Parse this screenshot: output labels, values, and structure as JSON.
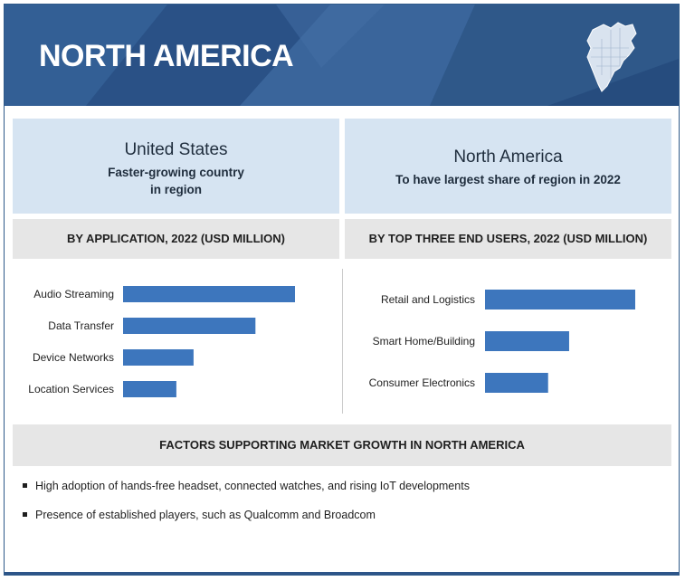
{
  "header": {
    "title": "NORTH AMERICA",
    "map_icon": "north-america-map-icon",
    "bg_color": "#2d5589"
  },
  "callouts": {
    "us": {
      "title": "United States",
      "line1": "Faster-growing country",
      "line2": "in region"
    },
    "na": {
      "title": "North America",
      "line1": "To have largest share of region in 2022"
    }
  },
  "bands": {
    "application": "BY APPLICATION, 2022 (USD MILLION)",
    "end_users": "BY TOP THREE END USERS, 2022 (USD MILLION)",
    "factors": "FACTORS SUPPORTING MARKET GROWTH IN NORTH AMERICA"
  },
  "chart_data": [
    {
      "type": "bar",
      "orientation": "horizontal",
      "title": "BY APPLICATION, 2022 (USD MILLION)",
      "categories": [
        "Audio Streaming",
        "Data Transfer",
        "Device Networks",
        "Location Services"
      ],
      "values": [
        100,
        77,
        41,
        31
      ],
      "xlim": [
        0,
        100
      ],
      "color": "#3d76bd",
      "grid": false
    },
    {
      "type": "bar",
      "orientation": "horizontal",
      "title": "BY TOP THREE END USERS, 2022 (USD MILLION)",
      "categories": [
        "Retail and Logistics",
        "Smart Home/Building",
        "Consumer Electronics"
      ],
      "values": [
        100,
        56,
        42
      ],
      "xlim": [
        0,
        100
      ],
      "color": "#3d76bd",
      "grid": false
    }
  ],
  "factors": [
    "High adoption of hands-free headset, connected watches, and rising IoT developments",
    "Presence of established players, such as Qualcomm and Broadcom"
  ]
}
